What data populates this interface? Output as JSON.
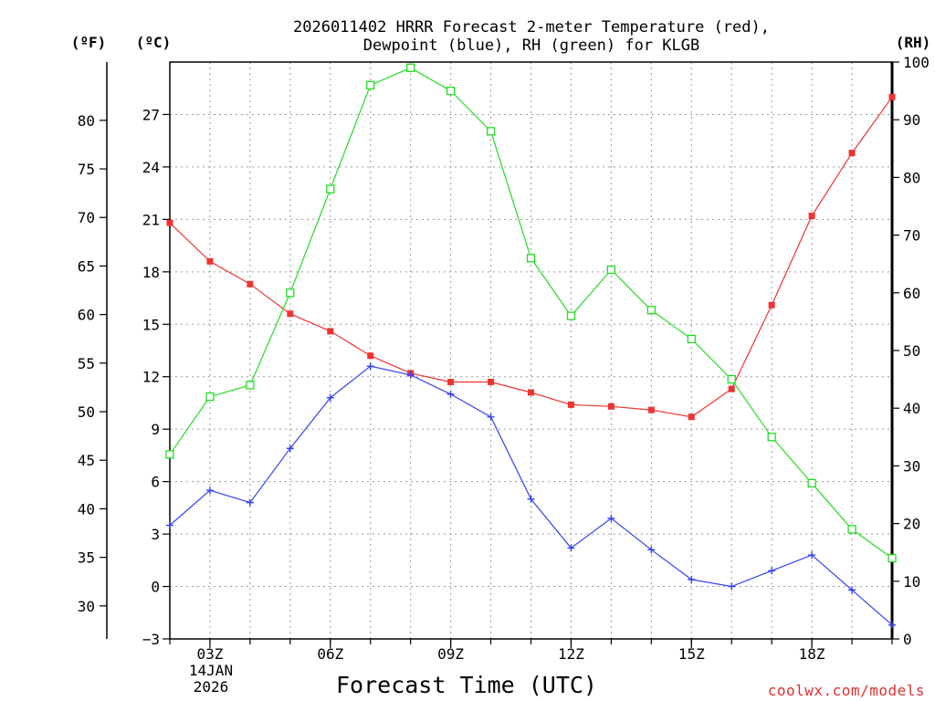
{
  "chart_data": {
    "type": "line",
    "title": [
      "2026011402 HRRR Forecast 2-meter Temperature (red),",
      "Dewpoint (blue), RH (green) for KLGB"
    ],
    "xlabel": "Forecast Time (UTC)",
    "credit": "coolwx.com/models",
    "x_hours": [
      2,
      3,
      4,
      5,
      6,
      7,
      8,
      9,
      10,
      11,
      12,
      13,
      14,
      15,
      16,
      17,
      18,
      19,
      20
    ],
    "x_ticks": [
      {
        "hour": 3,
        "label": "03Z"
      },
      {
        "hour": 6,
        "label": "06Z"
      },
      {
        "hour": 9,
        "label": "09Z"
      },
      {
        "hour": 12,
        "label": "12Z"
      },
      {
        "hour": 15,
        "label": "15Z"
      },
      {
        "hour": 18,
        "label": "18Z"
      }
    ],
    "date_label": [
      "14JAN",
      "2026"
    ],
    "xlim": [
      2,
      20
    ],
    "y_left_c": {
      "unit": "(ºC)",
      "lim": [
        -3,
        30
      ],
      "ticks": [
        -3,
        0,
        3,
        6,
        9,
        12,
        15,
        18,
        21,
        24,
        27
      ]
    },
    "y_left_f": {
      "unit": "(ºF)",
      "ticks": [
        30,
        35,
        40,
        45,
        50,
        55,
        60,
        65,
        70,
        75,
        80
      ]
    },
    "y_right_rh": {
      "unit": "(RH)",
      "lim": [
        0,
        100
      ],
      "ticks": [
        0,
        10,
        20,
        30,
        40,
        50,
        60,
        70,
        80,
        90,
        100
      ]
    },
    "series": [
      {
        "name": "2-meter Temperature",
        "axis": "C",
        "color": "#ee3333",
        "marker": "filled-square",
        "values": [
          20.8,
          18.6,
          17.3,
          15.6,
          14.6,
          13.2,
          12.2,
          11.7,
          11.7,
          11.1,
          10.4,
          10.3,
          10.1,
          9.7,
          11.3,
          16.1,
          21.2,
          24.8,
          28.0
        ]
      },
      {
        "name": "Dewpoint",
        "axis": "C",
        "color": "#3344ee",
        "marker": "plus",
        "values": [
          3.5,
          5.5,
          4.8,
          7.9,
          10.8,
          12.6,
          12.1,
          11.0,
          9.7,
          5.0,
          2.2,
          3.9,
          2.1,
          0.4,
          0.0,
          0.9,
          1.8,
          -0.2,
          -2.2
        ]
      },
      {
        "name": "RH",
        "axis": "RH",
        "color": "#22dd22",
        "marker": "open-square",
        "values": [
          32,
          42,
          44,
          60,
          78,
          96,
          99,
          95,
          88,
          66,
          56,
          64,
          57,
          52,
          45,
          35,
          27,
          19,
          14
        ]
      }
    ],
    "grid": true
  }
}
